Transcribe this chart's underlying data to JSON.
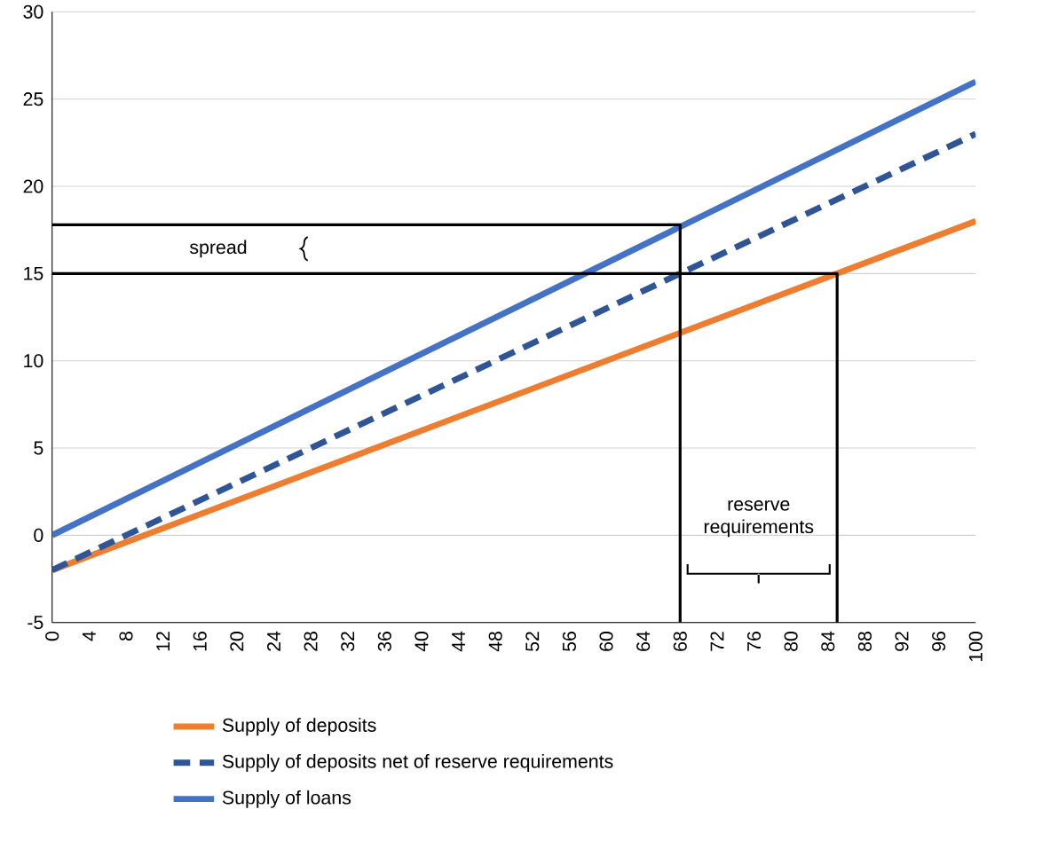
{
  "chart_data": {
    "type": "line",
    "xlim": [
      0,
      100
    ],
    "ylim": [
      -5,
      30
    ],
    "xticks": [
      0,
      4,
      8,
      12,
      16,
      20,
      24,
      28,
      32,
      36,
      40,
      44,
      48,
      52,
      56,
      60,
      64,
      68,
      72,
      76,
      80,
      84,
      88,
      92,
      96,
      100
    ],
    "yticks": [
      -5,
      0,
      5,
      10,
      15,
      20,
      25,
      30
    ],
    "grid": "y",
    "legend": "bottom",
    "series": [
      {
        "name": "Supply of deposits",
        "color": "#ed7d31",
        "line_style": "solid",
        "x": [
          0,
          100
        ],
        "values": [
          -2,
          18
        ]
      },
      {
        "name": "Supply of deposits net of reserve requirements",
        "color": "#2f5597",
        "line_style": "dashed",
        "x": [
          0,
          100
        ],
        "values": [
          -2,
          23
        ]
      },
      {
        "name": "Supply of loans",
        "color": "#4472c4",
        "line_style": "solid",
        "x": [
          0,
          100
        ],
        "values": [
          0,
          26
        ]
      },
      {
        "color": "#000000",
        "line_style": "solid",
        "x": [
          0,
          68,
          68
        ],
        "values": [
          17.8,
          17.8,
          -5
        ]
      },
      {
        "color": "#000000",
        "line_style": "solid",
        "x": [
          0,
          85,
          85
        ],
        "values": [
          15,
          15,
          -5
        ]
      }
    ],
    "annotations": [
      "spread",
      "reserve requirements"
    ]
  }
}
